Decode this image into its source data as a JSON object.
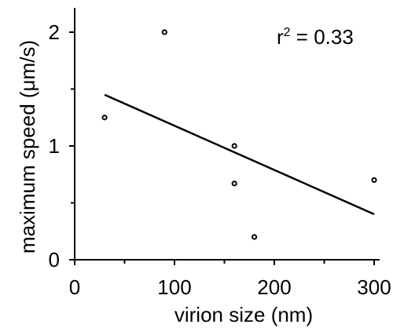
{
  "chart_data": {
    "type": "scatter",
    "title": "",
    "xlabel": "virion size (nm)",
    "ylabel": "maximum speed (μm/s)",
    "xlim": [
      0,
      300
    ],
    "ylim": [
      0,
      2.2
    ],
    "x_ticks": [
      0,
      100,
      200,
      300
    ],
    "x_minor_ticks": [
      50,
      150,
      250
    ],
    "y_ticks": [
      0,
      1,
      2
    ],
    "y_minor_ticks": [
      0.5,
      1.5
    ],
    "x_tick_labels": [
      "0",
      "100",
      "200",
      "300"
    ],
    "y_tick_labels": [
      "0",
      "1",
      "2"
    ],
    "grid": false,
    "points": [
      {
        "x": 30,
        "y": 1.25
      },
      {
        "x": 90,
        "y": 2.0
      },
      {
        "x": 160,
        "y": 1.0
      },
      {
        "x": 160,
        "y": 0.67
      },
      {
        "x": 180,
        "y": 0.2
      },
      {
        "x": 300,
        "y": 0.7
      }
    ],
    "fit_line": {
      "x": [
        30,
        300
      ],
      "y": [
        1.45,
        0.4
      ]
    },
    "annotation": {
      "label": "r",
      "superscript": "2",
      "text": " = 0.33"
    },
    "colors": {
      "axis": "#000000",
      "marker_fill": "#ffffff",
      "marker_stroke": "#000000"
    }
  }
}
